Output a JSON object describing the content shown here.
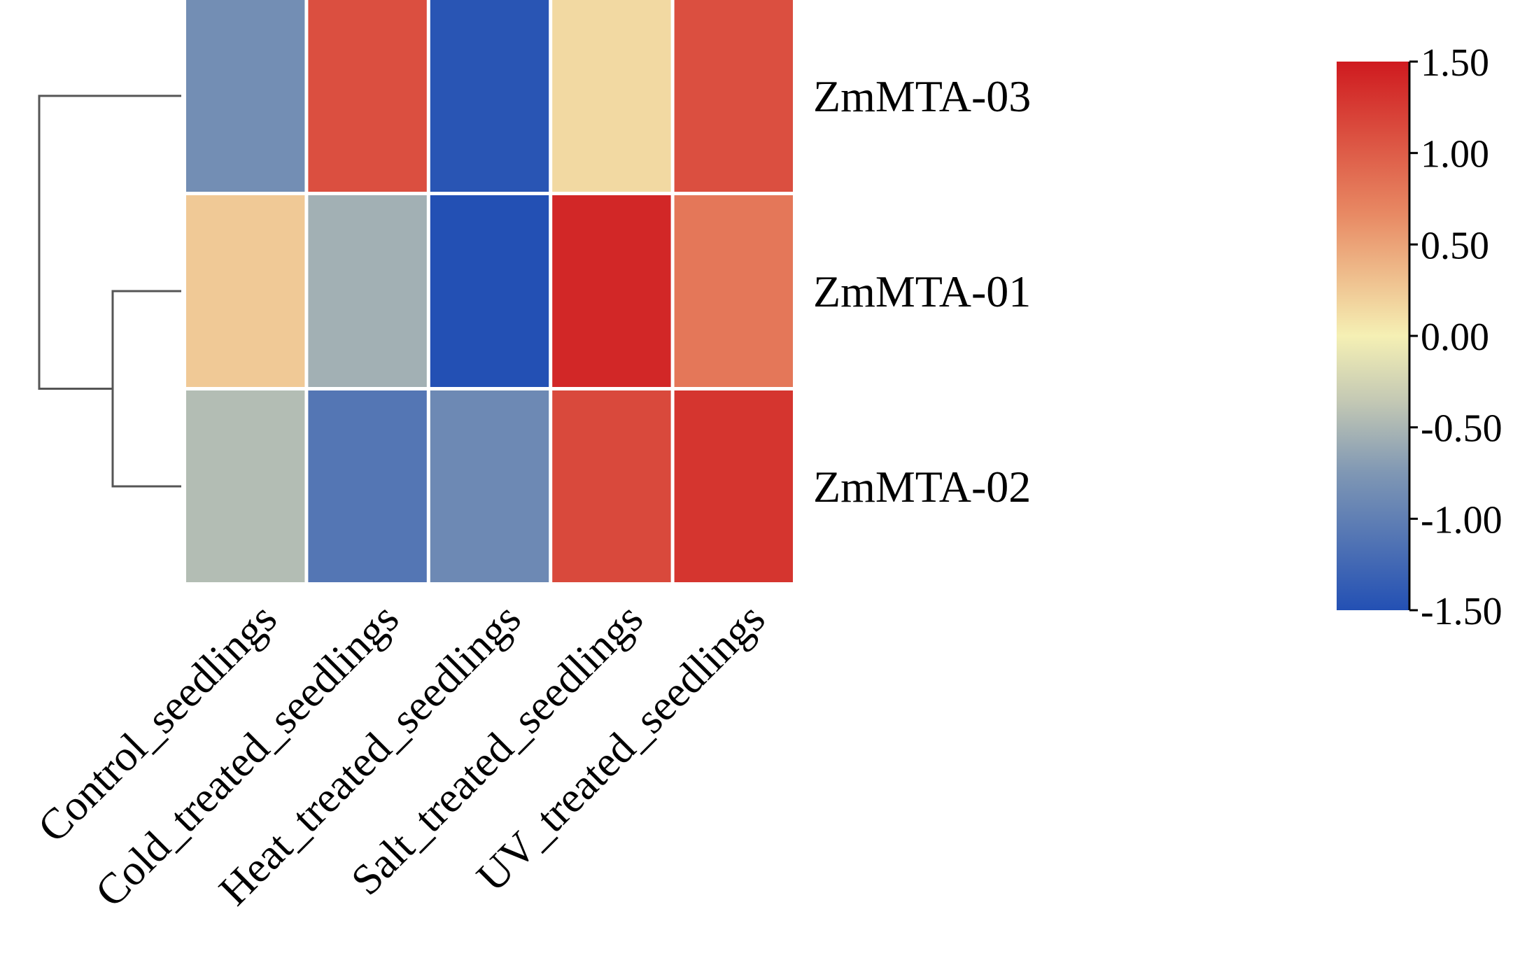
{
  "chart_data": {
    "type": "heatmap",
    "title": "",
    "xlabel": "",
    "ylabel": "",
    "rows": [
      "ZmMTA-03",
      "ZmMTA-01",
      "ZmMTA-02"
    ],
    "columns": [
      "Control_seedlings",
      "Cold_treated_seedlings",
      "Heat_treated_seedlings",
      "Salt_treated_seedlings",
      "UV_treated_seedlings"
    ],
    "values": [
      [
        -0.85,
        1.1,
        -1.45,
        0.15,
        1.1
      ],
      [
        0.25,
        -0.55,
        -1.5,
        1.4,
        0.8
      ],
      [
        -0.45,
        -1.1,
        -0.9,
        1.15,
        1.3
      ]
    ],
    "dendrogram": {
      "side": "left",
      "merges": [
        {
          "join": [
            "ZmMTA-01",
            "ZmMTA-02"
          ],
          "height": 1
        },
        {
          "join": [
            "ZmMTA-03",
            "ZmMTA-01+ZmMTA-02"
          ],
          "height": 2
        }
      ]
    },
    "colorbar": {
      "min": -1.5,
      "max": 1.5,
      "ticks": [
        "1.50",
        "1.00",
        "0.50",
        "0.00",
        "-0.50",
        "-1.00",
        "-1.50"
      ],
      "colors": {
        "low": "#2350b4",
        "mid_low": "#7f97b4",
        "mid_gray": "#c3c8b4",
        "zero": "#f5f0b4",
        "mid_high": "#e88a64",
        "high": "#cf1a1f"
      }
    },
    "legend_placement": "right",
    "grid": false
  }
}
